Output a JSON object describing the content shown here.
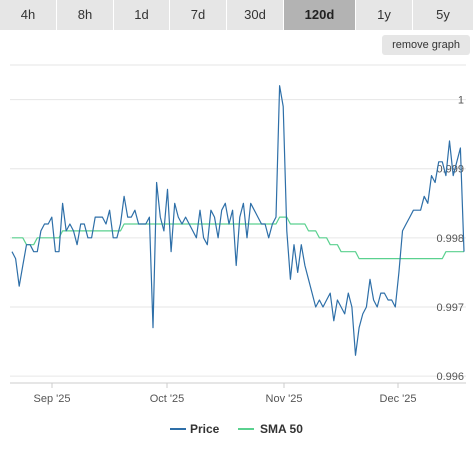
{
  "tabs": [
    {
      "label": "4h"
    },
    {
      "label": "8h"
    },
    {
      "label": "1d"
    },
    {
      "label": "7d"
    },
    {
      "label": "30d"
    },
    {
      "label": "120d",
      "active": true
    },
    {
      "label": "1y"
    },
    {
      "label": "5y"
    }
  ],
  "remove_graph_label": "remove graph",
  "chart_data": {
    "type": "line",
    "x_ticks": [
      "Sep '25",
      "Oct '25",
      "Nov '25",
      "Dec '25"
    ],
    "y_ticks": [
      "1",
      "0.999",
      "0.998",
      "0.997",
      "0.996"
    ],
    "ylim": [
      0.9959,
      1.0005
    ],
    "grid": true,
    "legend_position": "bottom",
    "series": [
      {
        "name": "Price",
        "color": "#2e6fa8",
        "values": [
          0.9978,
          0.9977,
          0.9973,
          0.9976,
          0.9979,
          0.9979,
          0.9978,
          0.9978,
          0.9981,
          0.9982,
          0.9982,
          0.9983,
          0.9978,
          0.9978,
          0.9985,
          0.9981,
          0.9982,
          0.9981,
          0.9979,
          0.9982,
          0.9982,
          0.998,
          0.998,
          0.9983,
          0.9983,
          0.9983,
          0.9982,
          0.9984,
          0.998,
          0.998,
          0.9982,
          0.9986,
          0.9983,
          0.9983,
          0.9984,
          0.9982,
          0.9982,
          0.9982,
          0.9983,
          0.9967,
          0.9988,
          0.9983,
          0.9981,
          0.9987,
          0.9978,
          0.9985,
          0.9983,
          0.9982,
          0.9983,
          0.9982,
          0.9981,
          0.998,
          0.9984,
          0.998,
          0.9979,
          0.9984,
          0.9983,
          0.998,
          0.9984,
          0.9985,
          0.9982,
          0.9984,
          0.9976,
          0.9983,
          0.9985,
          0.998,
          0.9985,
          0.9984,
          0.9983,
          0.9982,
          0.9982,
          0.998,
          0.9982,
          0.9983,
          1.0002,
          0.9999,
          0.9981,
          0.9974,
          0.9979,
          0.9975,
          0.9979,
          0.9976,
          0.9974,
          0.9972,
          0.997,
          0.9971,
          0.997,
          0.9971,
          0.9972,
          0.9968,
          0.9971,
          0.997,
          0.9969,
          0.9972,
          0.997,
          0.9963,
          0.9967,
          0.9969,
          0.997,
          0.9974,
          0.9971,
          0.997,
          0.9972,
          0.9972,
          0.9971,
          0.9971,
          0.997,
          0.9975,
          0.9981,
          0.9982,
          0.9983,
          0.9984,
          0.9984,
          0.9984,
          0.9986,
          0.9985,
          0.9989,
          0.9988,
          0.9991,
          0.9991,
          0.9989,
          0.9994,
          0.9989,
          0.9991,
          0.9993,
          0.9978
        ]
      },
      {
        "name": "SMA 50",
        "color": "#5ad18f",
        "values": [
          0.998,
          0.998,
          0.998,
          0.998,
          0.9979,
          0.9979,
          0.9979,
          0.998,
          0.998,
          0.998,
          0.998,
          0.998,
          0.998,
          0.998,
          0.9981,
          0.9981,
          0.9981,
          0.9981,
          0.9981,
          0.9981,
          0.9981,
          0.9981,
          0.9981,
          0.9981,
          0.9981,
          0.9981,
          0.9981,
          0.9981,
          0.9981,
          0.9981,
          0.9981,
          0.9982,
          0.9982,
          0.9982,
          0.9982,
          0.9982,
          0.9982,
          0.9982,
          0.9982,
          0.9982,
          0.9982,
          0.9982,
          0.9982,
          0.9982,
          0.9982,
          0.9982,
          0.9982,
          0.9982,
          0.9982,
          0.9982,
          0.9982,
          0.9982,
          0.9982,
          0.9982,
          0.9982,
          0.9982,
          0.9982,
          0.9982,
          0.9982,
          0.9982,
          0.9982,
          0.9982,
          0.9982,
          0.9982,
          0.9982,
          0.9982,
          0.9982,
          0.9982,
          0.9982,
          0.9982,
          0.9982,
          0.9982,
          0.9982,
          0.9982,
          0.9983,
          0.9983,
          0.9983,
          0.9982,
          0.9982,
          0.9982,
          0.9982,
          0.9982,
          0.9981,
          0.9981,
          0.9981,
          0.998,
          0.998,
          0.998,
          0.9979,
          0.9979,
          0.9979,
          0.9978,
          0.9978,
          0.9978,
          0.9978,
          0.9978,
          0.9977,
          0.9977,
          0.9977,
          0.9977,
          0.9977,
          0.9977,
          0.9977,
          0.9977,
          0.9977,
          0.9977,
          0.9977,
          0.9977,
          0.9977,
          0.9977,
          0.9977,
          0.9977,
          0.9977,
          0.9977,
          0.9977,
          0.9977,
          0.9977,
          0.9977,
          0.9977,
          0.9977,
          0.9978,
          0.9978,
          0.9978,
          0.9978,
          0.9978,
          0.9978
        ]
      }
    ]
  }
}
